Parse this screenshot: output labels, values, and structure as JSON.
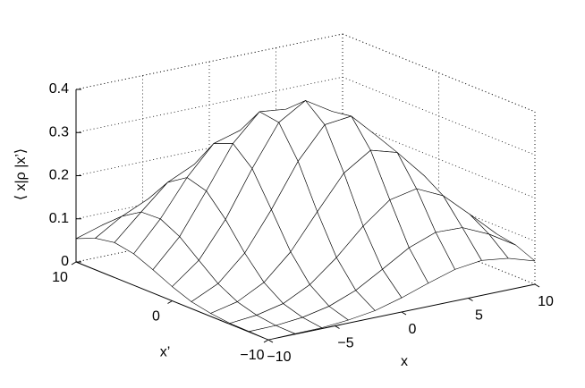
{
  "chart_data": {
    "type": "surface",
    "xlabel": "x",
    "ylabel": "x’",
    "zlabel": "⟨ x|ρ |x’⟩",
    "x": [
      -10,
      -8,
      -6,
      -4,
      -2,
      0,
      2,
      4,
      6,
      8,
      10
    ],
    "y": [
      -10,
      -8,
      -6,
      -4,
      -2,
      0,
      2,
      4,
      6,
      8,
      10
    ],
    "z": [
      [
        0.0,
        0.001,
        0.002,
        0.007,
        0.016,
        0.033,
        0.054,
        0.073,
        0.081,
        0.073,
        0.054
      ],
      [
        0.001,
        0.002,
        0.008,
        0.021,
        0.045,
        0.081,
        0.118,
        0.141,
        0.139,
        0.111,
        0.073
      ],
      [
        0.002,
        0.008,
        0.022,
        0.053,
        0.103,
        0.163,
        0.211,
        0.224,
        0.195,
        0.139,
        0.081
      ],
      [
        0.007,
        0.021,
        0.053,
        0.111,
        0.191,
        0.268,
        0.308,
        0.29,
        0.224,
        0.141,
        0.073
      ],
      [
        0.016,
        0.045,
        0.103,
        0.191,
        0.29,
        0.362,
        0.369,
        0.308,
        0.211,
        0.118,
        0.054
      ],
      [
        0.033,
        0.081,
        0.163,
        0.268,
        0.362,
        0.4,
        0.362,
        0.268,
        0.163,
        0.081,
        0.033
      ],
      [
        0.054,
        0.118,
        0.211,
        0.308,
        0.369,
        0.362,
        0.29,
        0.191,
        0.103,
        0.045,
        0.016
      ],
      [
        0.073,
        0.141,
        0.224,
        0.29,
        0.308,
        0.268,
        0.191,
        0.111,
        0.053,
        0.021,
        0.007
      ],
      [
        0.081,
        0.139,
        0.195,
        0.224,
        0.211,
        0.163,
        0.103,
        0.053,
        0.022,
        0.008,
        0.002
      ],
      [
        0.073,
        0.111,
        0.139,
        0.141,
        0.118,
        0.081,
        0.045,
        0.021,
        0.008,
        0.002,
        0.001
      ],
      [
        0.054,
        0.073,
        0.081,
        0.073,
        0.054,
        0.033,
        0.016,
        0.007,
        0.002,
        0.001,
        0.0
      ]
    ],
    "xlim": [
      -10,
      10
    ],
    "ylim": [
      -10,
      10
    ],
    "zlim": [
      0,
      0.4
    ],
    "xticks": [
      {
        "value": -10,
        "label": "−10"
      },
      {
        "value": -5,
        "label": "−5"
      },
      0,
      5,
      10
    ],
    "yticks": [
      {
        "value": -10,
        "label": "−10"
      },
      0,
      10
    ],
    "zticks": [
      0,
      0.1,
      0.2,
      0.3,
      0.4
    ],
    "grid": true,
    "face_color": "#ffffff",
    "edge_color": "#000000"
  }
}
